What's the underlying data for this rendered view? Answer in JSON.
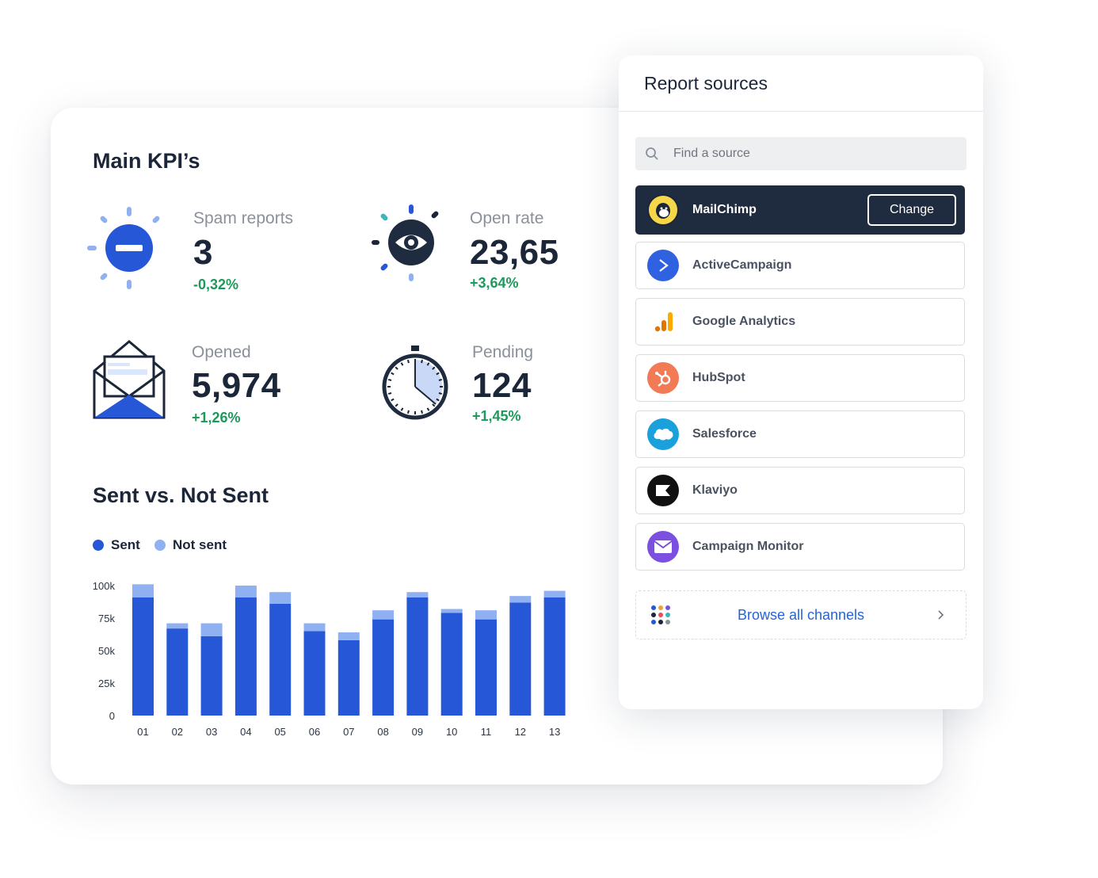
{
  "dashboard": {
    "kpi_title": "Main KPI’s",
    "kpis": [
      {
        "label": "Spam reports",
        "value": "3",
        "delta": "-0,32%",
        "icon": "spam-block-icon"
      },
      {
        "label": "Open rate",
        "value": "23,65",
        "delta": "+3,64%",
        "icon": "eye-icon"
      },
      {
        "label": "Opened",
        "value": "5,974",
        "delta": "+1,26%",
        "icon": "open-envelope-icon"
      },
      {
        "label": "Pending",
        "value": "124",
        "delta": "+1,45%",
        "icon": "stopwatch-icon"
      }
    ],
    "chart_title": "Sent vs. Not Sent",
    "legend": {
      "sent": "Sent",
      "not_sent": "Not sent"
    },
    "colors": {
      "sent": "#2557d6",
      "not_sent": "#8fb0f1",
      "positive_delta": "#1d9a5b",
      "dark": "#1f2b3e",
      "link": "#2563d9"
    }
  },
  "chart_data": {
    "type": "bar",
    "stacked": true,
    "categories": [
      "01",
      "02",
      "03",
      "04",
      "05",
      "06",
      "07",
      "08",
      "09",
      "10",
      "11",
      "12",
      "13"
    ],
    "series": [
      {
        "name": "Sent",
        "values": [
          91,
          67,
          61,
          91,
          86,
          65,
          58,
          74,
          91,
          79,
          74,
          87,
          91
        ]
      },
      {
        "name": "Not sent",
        "values": [
          10,
          4,
          10,
          9,
          9,
          6,
          6,
          7,
          4,
          3,
          7,
          5,
          5
        ]
      }
    ],
    "ylim": [
      0,
      100
    ],
    "yticks": [
      "0",
      "25k",
      "50k",
      "75k",
      "100k"
    ],
    "grid": false
  },
  "sources": {
    "title": "Report sources",
    "search_placeholder": "Find a source",
    "change_label": "Change",
    "items": [
      {
        "name": "MailChimp",
        "icon": "mailchimp-logo-icon",
        "active": true
      },
      {
        "name": "ActiveCampaign",
        "icon": "activecampaign-logo-icon"
      },
      {
        "name": "Google Analytics",
        "icon": "google-analytics-logo-icon"
      },
      {
        "name": "HubSpot",
        "icon": "hubspot-logo-icon"
      },
      {
        "name": "Salesforce",
        "icon": "salesforce-logo-icon"
      },
      {
        "name": "Klaviyo",
        "icon": "klaviyo-logo-icon"
      },
      {
        "name": "Campaign Monitor",
        "icon": "campaign-monitor-logo-icon"
      }
    ],
    "browse_label": "Browse all channels"
  }
}
